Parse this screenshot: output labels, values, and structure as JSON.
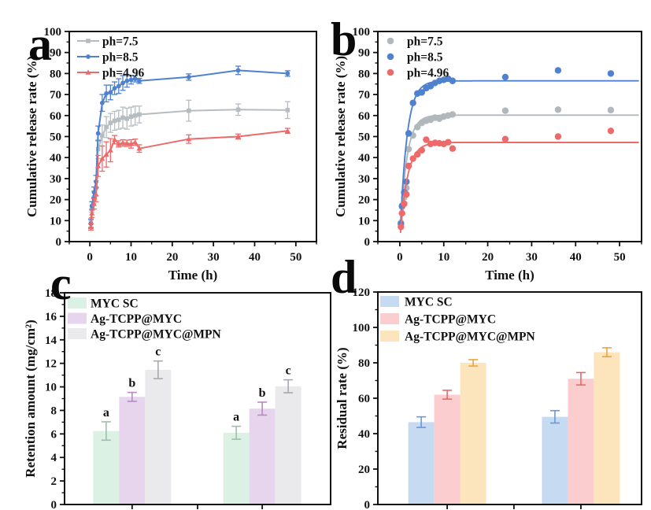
{
  "figure": {
    "background": "#ffffff",
    "panel_letters": [
      "a",
      "b",
      "c",
      "d"
    ]
  },
  "chart_data": [
    {
      "id": "a",
      "type": "line",
      "title": "",
      "xlabel": "Time (h)",
      "ylabel": "Cumulative release rate (%)",
      "xlim": [
        -5,
        55
      ],
      "ylim": [
        0,
        100
      ],
      "xticks": [
        0,
        10,
        20,
        30,
        40,
        50
      ],
      "yticks": [
        0,
        10,
        20,
        30,
        40,
        50,
        60,
        70,
        80,
        90,
        100
      ],
      "x_minor_step": 5,
      "y_minor_step": 5,
      "grid": false,
      "legend_position": "top-left",
      "x": [
        0.25,
        0.5,
        1,
        1.5,
        2,
        3,
        4,
        5,
        6,
        7,
        8,
        9,
        10,
        11,
        12,
        24,
        36,
        48
      ],
      "series": [
        {
          "name": "ph=7.5",
          "color": "#b6bdc1",
          "marker": "square",
          "values": [
            9,
            16.5,
            21,
            25.5,
            44,
            50.5,
            54.5,
            56.5,
            57.5,
            58,
            59,
            58.5,
            59.5,
            60,
            60.5,
            62.3,
            62.8,
            62.6
          ],
          "errors": [
            2,
            2.5,
            3,
            3.5,
            4.5,
            5,
            5,
            4.5,
            4.5,
            4.5,
            5,
            5,
            4.5,
            4.5,
            4,
            5,
            2.7,
            4
          ]
        },
        {
          "name": "ph=8.5",
          "color": "#4f81cf",
          "marker": "circle",
          "values": [
            8.5,
            17,
            23.5,
            28.5,
            51.5,
            66,
            70.5,
            71,
            73,
            74,
            75.5,
            76.5,
            77,
            77.5,
            76.5,
            78.3,
            81.5,
            80
          ],
          "errors": [
            2,
            2,
            2.5,
            3,
            3.5,
            4,
            4,
            3.5,
            3,
            3.5,
            3.5,
            3,
            2,
            1.5,
            1.2,
            1.5,
            2,
            1.3
          ]
        },
        {
          "name": "ph=4.96",
          "color": "#ee6a6a",
          "marker": "triangle",
          "values": [
            7,
            13.5,
            18,
            22.5,
            36,
            39.5,
            41.5,
            43.5,
            48.5,
            46.5,
            47,
            46.8,
            46.5,
            47.3,
            44.3,
            48.8,
            50,
            52.7
          ],
          "errors": [
            1.5,
            2,
            2.5,
            3.5,
            5,
            6,
            6,
            5.5,
            2,
            1.5,
            1.5,
            1.5,
            2,
            1.5,
            1.8,
            2,
            1.2,
            1.2
          ]
        }
      ]
    },
    {
      "id": "b",
      "type": "scatter",
      "title": "",
      "xlabel": "Time (h)",
      "ylabel": "Cumulative release rate (%)",
      "xlim": [
        -5,
        55
      ],
      "ylim": [
        0,
        100
      ],
      "xticks": [
        0,
        10,
        20,
        30,
        40,
        50
      ],
      "yticks": [
        0,
        10,
        20,
        30,
        40,
        50,
        60,
        70,
        80,
        90,
        100
      ],
      "x_minor_step": 5,
      "y_minor_step": 5,
      "grid": false,
      "legend_position": "top-left",
      "x": [
        0.25,
        0.5,
        1,
        1.5,
        2,
        3,
        4,
        5,
        6,
        7,
        8,
        9,
        10,
        11,
        12,
        24,
        36,
        48
      ],
      "series": [
        {
          "name": "ph=7.5",
          "color": "#b0b8bc",
          "values": [
            9,
            16.5,
            21,
            25.5,
            44,
            50.5,
            54.5,
            56.5,
            57.5,
            58,
            59,
            58.5,
            59.5,
            60,
            60.5,
            62.3,
            62.8,
            62.6
          ],
          "fit": {
            "model": "plateau*(1-exp(-t/tau))",
            "plateau": 60.2,
            "tau": 1.5
          }
        },
        {
          "name": "ph=8.5",
          "color": "#4f81cf",
          "values": [
            8.5,
            17,
            23.5,
            28.5,
            51.5,
            66,
            70.5,
            71,
            73,
            74,
            75.5,
            76.5,
            77,
            77.5,
            76.5,
            78.3,
            81.5,
            80
          ],
          "fit": {
            "model": "plateau*(1-exp(-t/tau))",
            "plateau": 76.5,
            "tau": 1.55
          }
        },
        {
          "name": "ph=4.96",
          "color": "#ee6a6a",
          "values": [
            7,
            13.5,
            18,
            22.5,
            36,
            39.5,
            41.5,
            43.5,
            48.5,
            46.5,
            47,
            46.8,
            46.5,
            47.3,
            44.3,
            48.8,
            50,
            52.7
          ],
          "fit": {
            "model": "plateau*(1-exp(-t/tau))",
            "plateau": 47.2,
            "tau": 1.65
          }
        }
      ]
    },
    {
      "id": "c",
      "type": "bar",
      "title": "",
      "xlabel": "",
      "ylabel": "Retention amount (mg/cm²)",
      "ylim": [
        0,
        18
      ],
      "yticks": [
        0,
        2,
        4,
        6,
        8,
        10,
        12,
        14,
        16,
        18
      ],
      "y_minor_step": 1,
      "grid": false,
      "legend_position": "top-left",
      "categories": [
        "",
        ""
      ],
      "series": [
        {
          "name": "MYC SC",
          "color": "#daf1e3",
          "error_color": "#a3bcac",
          "values": [
            6.25,
            6.1
          ],
          "errors": [
            0.78,
            0.55
          ],
          "letters": [
            "a",
            "a"
          ]
        },
        {
          "name": "Ag-TCPP@MYC",
          "color": "#e7d5ee",
          "error_color": "#bb86c6",
          "values": [
            9.15,
            8.15
          ],
          "errors": [
            0.38,
            0.55
          ],
          "letters": [
            "b",
            "b"
          ]
        },
        {
          "name": "Ag-TCPP@MYC@MPN",
          "color": "#eaeaec",
          "error_color": "#a8a9ad",
          "values": [
            11.45,
            10.05
          ],
          "errors": [
            0.75,
            0.55
          ],
          "letters": [
            "c",
            "c"
          ]
        }
      ]
    },
    {
      "id": "d",
      "type": "bar",
      "title": "",
      "xlabel": "",
      "ylabel": "Residual rate (%)",
      "ylim": [
        0,
        120
      ],
      "yticks": [
        0,
        20,
        40,
        60,
        80,
        100,
        120
      ],
      "y_minor_step": 10,
      "grid": false,
      "legend_position": "top-left",
      "categories": [
        "",
        ""
      ],
      "series": [
        {
          "name": "MYC SC",
          "color": "#c6daf2",
          "error_color": "#6b97d6",
          "values": [
            46.5,
            49.5
          ],
          "errors": [
            3,
            3.5
          ]
        },
        {
          "name": "Ag-TCPP@MYC",
          "color": "#fbcdce",
          "error_color": "#e96a66",
          "values": [
            62,
            71
          ],
          "errors": [
            2.5,
            3.5
          ]
        },
        {
          "name": "Ag-TCPP@MYC@MPN",
          "color": "#fce4bd",
          "error_color": "#f0a23a",
          "values": [
            80,
            86
          ],
          "errors": [
            1.8,
            2.5
          ]
        }
      ]
    }
  ]
}
